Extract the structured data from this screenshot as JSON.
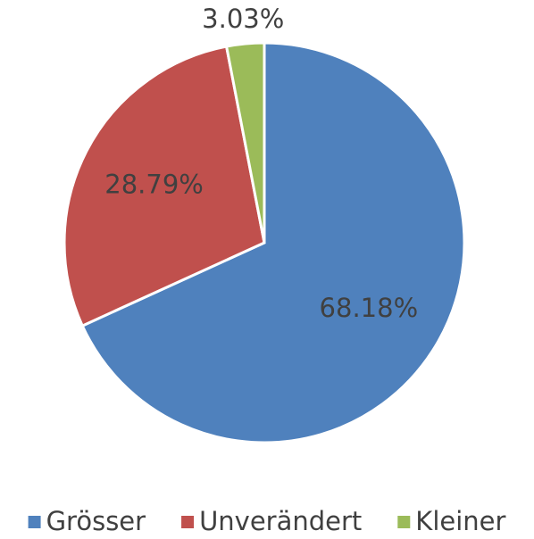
{
  "chart_data": {
    "type": "pie",
    "categories": [
      "Grösser",
      "Unverändert",
      "Kleiner"
    ],
    "values": [
      68.18,
      28.79,
      3.03
    ],
    "value_labels": [
      "68.18%",
      "28.79%",
      "3.03%"
    ],
    "colors": [
      "#4f81bd",
      "#c0504d",
      "#9bbb59"
    ],
    "legend": "bottom"
  }
}
